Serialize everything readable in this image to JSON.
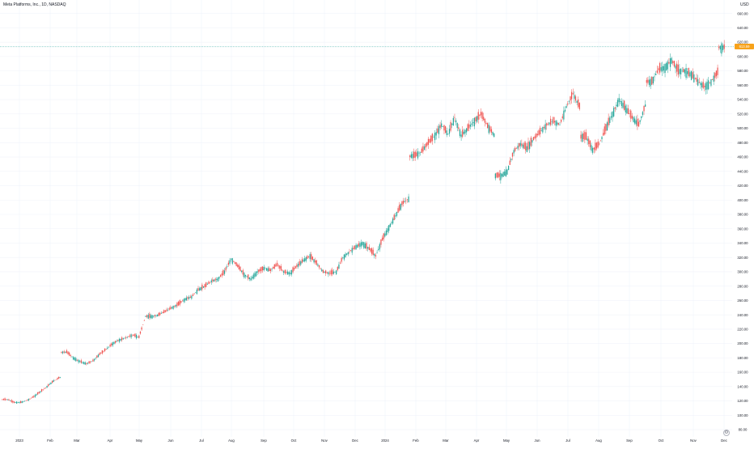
{
  "header": {
    "symbol_label": "Meta Platforms, Inc., 1D, NASDAQ",
    "currency": "USD"
  },
  "last_price_tag": "613.59",
  "colors": {
    "up": "#26a69a",
    "down": "#ef5350",
    "price_line": "#26a69a",
    "price_tag": "#f7a21b",
    "axis_text": "#131722",
    "grid": "#f0f3fa"
  },
  "icons": {
    "settings": "gear-icon"
  },
  "chart_data": {
    "type": "candlestick",
    "title": "Meta Platforms, Inc., 1D, NASDAQ",
    "currency": "USD",
    "grid": true,
    "ylim": [
      70,
      670
    ],
    "y_ticks": [
      80,
      100,
      120,
      140,
      160,
      180,
      200,
      220,
      240,
      260,
      280,
      300,
      320,
      340,
      360,
      380,
      400,
      420,
      440,
      460,
      480,
      500,
      520,
      540,
      560,
      580,
      600,
      620,
      640,
      660
    ],
    "x_labels": [
      "2023",
      "Feb",
      "Mar",
      "Apr",
      "May",
      "Jun",
      "Jul",
      "Aug",
      "Sep",
      "Oct",
      "Nov",
      "Dec",
      "2024",
      "Feb",
      "Mar",
      "Apr",
      "May",
      "Jun",
      "Jul",
      "Aug",
      "Sep",
      "Oct",
      "Nov",
      "Dec"
    ],
    "last_price": 613.59,
    "closes": [
      122,
      118,
      118,
      121,
      126,
      133,
      140,
      148,
      153,
      188,
      180,
      175,
      172,
      176,
      185,
      192,
      200,
      205,
      208,
      212,
      209,
      238,
      238,
      240,
      245,
      250,
      255,
      262,
      265,
      275,
      280,
      287,
      290,
      300,
      318,
      308,
      296,
      290,
      300,
      305,
      302,
      310,
      300,
      298,
      308,
      316,
      322,
      312,
      300,
      298,
      300,
      320,
      328,
      335,
      340,
      332,
      322,
      345,
      362,
      378,
      395,
      402,
      462,
      468,
      480,
      490,
      505,
      492,
      515,
      490,
      500,
      510,
      520,
      503,
      491,
      434,
      440,
      468,
      478,
      472,
      485,
      495,
      505,
      510,
      505,
      530,
      548,
      530,
      488,
      470,
      478,
      500,
      520,
      540,
      528,
      515,
      505,
      532,
      565,
      582,
      585,
      595,
      580,
      580,
      575,
      565,
      558,
      565,
      578,
      613
    ]
  }
}
